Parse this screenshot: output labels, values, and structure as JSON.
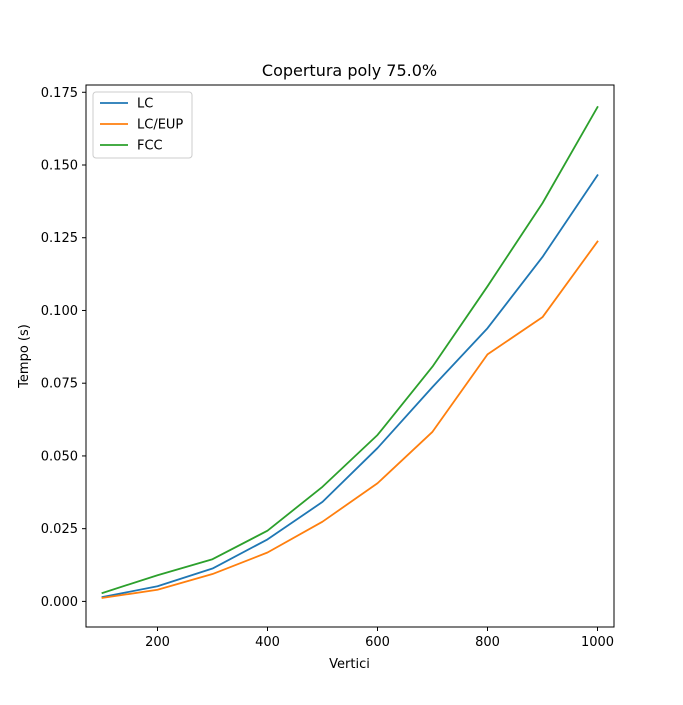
{
  "chart_data": {
    "type": "line",
    "title": "Copertura poly 75.0%",
    "xlabel": "Vertici",
    "ylabel": "Tempo (s)",
    "xlim": [
      70,
      1030
    ],
    "ylim": [
      -0.0088,
      0.1775
    ],
    "x": [
      100,
      200,
      300,
      400,
      500,
      600,
      700,
      800,
      900,
      1000
    ],
    "xticks": [
      200,
      400,
      600,
      800,
      1000
    ],
    "xtick_labels": [
      "200",
      "400",
      "600",
      "800",
      "1000"
    ],
    "yticks": [
      0.0,
      0.025,
      0.05,
      0.075,
      0.1,
      0.125,
      0.15,
      0.175
    ],
    "ytick_labels": [
      "0.000",
      "0.025",
      "0.050",
      "0.075",
      "0.100",
      "0.125",
      "0.150",
      "0.175"
    ],
    "grid": false,
    "legend_position": "top-left",
    "series": [
      {
        "name": "LC",
        "color": "#1f77b4",
        "values": [
          0.0015,
          0.0052,
          0.0113,
          0.0213,
          0.0342,
          0.0527,
          0.0737,
          0.0939,
          0.1184,
          0.1465
        ]
      },
      {
        "name": "LC/EUP",
        "color": "#ff7f0e",
        "values": [
          0.0012,
          0.004,
          0.0094,
          0.0168,
          0.0274,
          0.0406,
          0.0583,
          0.0849,
          0.0977,
          0.1237
        ]
      },
      {
        "name": "FCC",
        "color": "#2ca02c",
        "values": [
          0.0029,
          0.009,
          0.0145,
          0.0243,
          0.0394,
          0.0572,
          0.0807,
          0.1083,
          0.1369,
          0.1699
        ]
      }
    ]
  }
}
